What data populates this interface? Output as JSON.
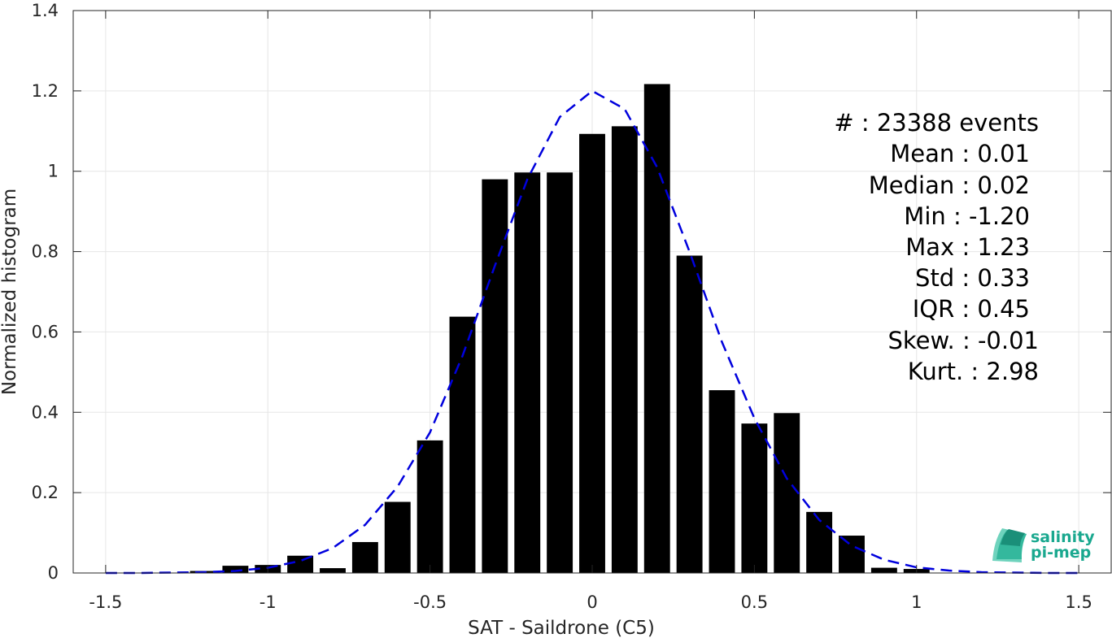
{
  "chart_data": {
    "type": "bar",
    "xlabel": "SAT - Saildrone (C5)",
    "ylabel": "Normalized histogram",
    "xlim": [
      -1.6,
      1.6
    ],
    "ylim": [
      0,
      1.4
    ],
    "xticks": [
      -1.5,
      -1,
      -0.5,
      0,
      0.5,
      1,
      1.5
    ],
    "xtick_labels": [
      "-1.5",
      "-1",
      "-0.5",
      "0",
      "0.5",
      "1",
      "1.5"
    ],
    "yticks": [
      0,
      0.2,
      0.4,
      0.6,
      0.8,
      1,
      1.2,
      1.4
    ],
    "ytick_labels": [
      "0",
      "0.2",
      "0.4",
      "0.6",
      "0.8",
      "1",
      "1.2",
      "1.4"
    ],
    "grid": true,
    "bar_color": "#000000",
    "bin_width": 0.1,
    "bins": [
      {
        "x": -1.2,
        "value": 0.005
      },
      {
        "x": -1.1,
        "value": 0.018
      },
      {
        "x": -1.0,
        "value": 0.02
      },
      {
        "x": -0.9,
        "value": 0.043
      },
      {
        "x": -0.8,
        "value": 0.012
      },
      {
        "x": -0.7,
        "value": 0.077
      },
      {
        "x": -0.6,
        "value": 0.177
      },
      {
        "x": -0.5,
        "value": 0.33
      },
      {
        "x": -0.4,
        "value": 0.638
      },
      {
        "x": -0.3,
        "value": 0.98
      },
      {
        "x": -0.2,
        "value": 0.997
      },
      {
        "x": -0.1,
        "value": 0.997
      },
      {
        "x": 0.0,
        "value": 1.093
      },
      {
        "x": 0.1,
        "value": 1.112
      },
      {
        "x": 0.2,
        "value": 1.217
      },
      {
        "x": 0.3,
        "value": 0.79
      },
      {
        "x": 0.4,
        "value": 0.455
      },
      {
        "x": 0.5,
        "value": 0.372
      },
      {
        "x": 0.6,
        "value": 0.398
      },
      {
        "x": 0.7,
        "value": 0.152
      },
      {
        "x": 0.8,
        "value": 0.093
      },
      {
        "x": 0.9,
        "value": 0.013
      },
      {
        "x": 1.0,
        "value": 0.01
      }
    ],
    "fit_curve": {
      "color": "#0000dd",
      "style": "dashed",
      "points": [
        [
          -1.5,
          0.0
        ],
        [
          -1.4,
          0.0
        ],
        [
          -1.3,
          0.001
        ],
        [
          -1.2,
          0.002
        ],
        [
          -1.1,
          0.005
        ],
        [
          -1.0,
          0.013
        ],
        [
          -0.9,
          0.03
        ],
        [
          -0.8,
          0.062
        ],
        [
          -0.7,
          0.12
        ],
        [
          -0.6,
          0.215
        ],
        [
          -0.5,
          0.35
        ],
        [
          -0.4,
          0.54
        ],
        [
          -0.3,
          0.765
        ],
        [
          -0.2,
          0.98
        ],
        [
          -0.1,
          1.135
        ],
        [
          0.0,
          1.2
        ],
        [
          0.1,
          1.155
        ],
        [
          0.2,
          1.01
        ],
        [
          0.3,
          0.8
        ],
        [
          0.4,
          0.575
        ],
        [
          0.5,
          0.385
        ],
        [
          0.6,
          0.235
        ],
        [
          0.7,
          0.132
        ],
        [
          0.8,
          0.068
        ],
        [
          0.9,
          0.033
        ],
        [
          1.0,
          0.014
        ],
        [
          1.1,
          0.006
        ],
        [
          1.2,
          0.002
        ],
        [
          1.3,
          0.001
        ],
        [
          1.4,
          0.0
        ],
        [
          1.5,
          0.0
        ]
      ]
    }
  },
  "stats": [
    {
      "key": "count",
      "text": "#  : 23388 events"
    },
    {
      "key": "mean",
      "text": "Mean : 0.01"
    },
    {
      "key": "median",
      "text": "Median : 0.02"
    },
    {
      "key": "min",
      "text": "Min : -1.20"
    },
    {
      "key": "max",
      "text": "Max : 1.23"
    },
    {
      "key": "std",
      "text": "Std : 0.33"
    },
    {
      "key": "iqr",
      "text": "IQR : 0.45"
    },
    {
      "key": "skew",
      "text": "Skew. : -0.01"
    },
    {
      "key": "kurt",
      "text": "Kurt. : 2.98"
    }
  ],
  "logo": {
    "line1": "salinity",
    "line2": "pi-mep",
    "color": "#1aa88f"
  }
}
